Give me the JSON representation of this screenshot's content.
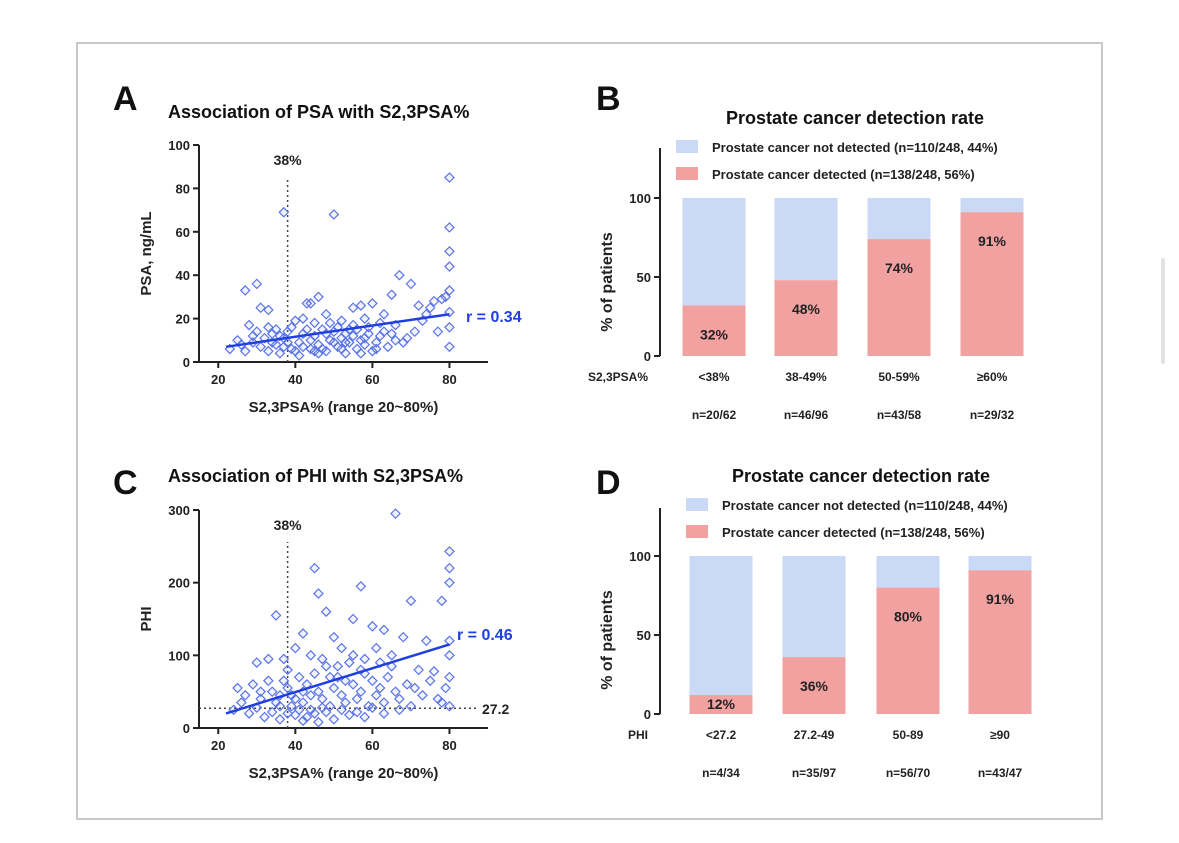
{
  "colors": {
    "scatter": "#5a74e8",
    "fit": "#1f3fe0",
    "r_label": "#1f3fe0",
    "not_detected": "#c9d9f6",
    "detected": "#f2a1a1",
    "axis": "#222222"
  },
  "chart_data": [
    {
      "type": "scatter",
      "panel_letter": "A",
      "title": "Association of PSA with S2,3PSA%",
      "xlabel": "S2,3PSA% (range 20~80%)",
      "ylabel": "PSA, ng/mL",
      "xlim": [
        15,
        90
      ],
      "ylim": [
        0,
        100
      ],
      "xticks": [
        20,
        40,
        60,
        80
      ],
      "yticks": [
        0,
        20,
        40,
        60,
        80,
        100
      ],
      "fit_line": {
        "x": [
          22,
          80
        ],
        "y": [
          7,
          22
        ]
      },
      "annotation": "r = 0.34",
      "vline": {
        "x": 38,
        "label": "38%"
      },
      "points": [
        [
          30,
          36
        ],
        [
          27,
          33
        ],
        [
          31,
          25
        ],
        [
          37,
          69
        ],
        [
          33,
          24
        ],
        [
          43,
          27
        ],
        [
          44,
          27
        ],
        [
          46,
          30
        ],
        [
          50,
          68
        ],
        [
          55,
          25
        ],
        [
          57,
          26
        ],
        [
          60,
          27
        ],
        [
          63,
          22
        ],
        [
          65,
          31
        ],
        [
          67,
          40
        ],
        [
          70,
          36
        ],
        [
          72,
          26
        ],
        [
          75,
          25
        ],
        [
          76,
          28
        ],
        [
          78,
          29
        ],
        [
          79,
          30
        ],
        [
          80,
          85
        ],
        [
          80,
          62
        ],
        [
          80,
          51
        ],
        [
          80,
          44
        ],
        [
          80,
          33
        ],
        [
          80,
          23
        ],
        [
          80,
          16
        ],
        [
          80,
          7
        ],
        [
          28,
          17
        ],
        [
          33,
          16
        ],
        [
          35,
          15
        ],
        [
          38,
          14
        ],
        [
          40,
          19
        ],
        [
          42,
          20
        ],
        [
          45,
          18
        ],
        [
          48,
          22
        ],
        [
          52,
          19
        ],
        [
          55,
          17
        ],
        [
          58,
          20
        ],
        [
          62,
          18
        ],
        [
          66,
          17
        ],
        [
          69,
          11
        ],
        [
          73,
          19
        ],
        [
          77,
          14
        ],
        [
          23,
          6
        ],
        [
          26,
          8
        ],
        [
          29,
          12
        ],
        [
          31,
          7
        ],
        [
          34,
          9
        ],
        [
          36,
          4
        ],
        [
          37,
          11
        ],
        [
          39,
          6
        ],
        [
          41,
          9
        ],
        [
          42,
          13
        ],
        [
          44,
          6
        ],
        [
          45,
          12
        ],
        [
          46,
          8
        ],
        [
          47,
          15
        ],
        [
          48,
          5
        ],
        [
          49,
          10
        ],
        [
          50,
          14
        ],
        [
          51,
          7
        ],
        [
          52,
          11
        ],
        [
          53,
          4
        ],
        [
          54,
          9
        ],
        [
          55,
          12
        ],
        [
          56,
          6
        ],
        [
          57,
          10
        ],
        [
          58,
          8
        ],
        [
          59,
          13
        ],
        [
          60,
          5
        ],
        [
          61,
          9
        ],
        [
          62,
          12
        ],
        [
          64,
          7
        ],
        [
          66,
          10
        ],
        [
          68,
          9
        ],
        [
          71,
          14
        ],
        [
          25,
          10
        ],
        [
          27,
          5
        ],
        [
          30,
          14
        ],
        [
          32,
          11
        ],
        [
          35,
          8
        ],
        [
          38,
          9
        ],
        [
          40,
          5
        ],
        [
          43,
          15
        ],
        [
          46,
          4
        ],
        [
          49,
          18
        ],
        [
          51,
          16
        ],
        [
          53,
          13
        ],
        [
          56,
          15
        ],
        [
          59,
          16
        ],
        [
          61,
          6
        ],
        [
          63,
          14
        ],
        [
          33,
          5
        ],
        [
          36,
          12
        ],
        [
          39,
          16
        ],
        [
          41,
          3
        ],
        [
          44,
          10
        ],
        [
          47,
          6
        ],
        [
          50,
          9
        ],
        [
          52,
          6
        ],
        [
          54,
          15
        ],
        [
          57,
          4
        ],
        [
          29,
          9
        ],
        [
          34,
          13
        ],
        [
          37,
          7
        ],
        [
          42,
          7
        ],
        [
          45,
          5
        ],
        [
          48,
          13
        ],
        [
          53,
          9
        ],
        [
          58,
          11
        ],
        [
          65,
          13
        ],
        [
          74,
          22
        ]
      ]
    },
    {
      "type": "bar",
      "stacked": true,
      "panel_letter": "B",
      "title": "Prostate cancer detection rate",
      "ylabel": "% of patients",
      "xlabel": "S2,3PSA%",
      "ylim": [
        0,
        100
      ],
      "yticks": [
        0,
        50,
        100
      ],
      "legend_position": "top",
      "categories": [
        "<38%",
        "38-49%",
        "50-59%",
        "≥60%"
      ],
      "counts": [
        "n=20/62",
        "n=46/96",
        "n=43/58",
        "n=29/32"
      ],
      "series": [
        {
          "name": "Prostate cancer not detected (n=110/248, 44%)",
          "values": [
            68,
            52,
            26,
            9
          ]
        },
        {
          "name": "Prostate cancer detected (n=138/248, 56%)",
          "values": [
            32,
            48,
            74,
            91
          ]
        }
      ],
      "data_labels": [
        "32%",
        "48%",
        "74%",
        "91%"
      ]
    },
    {
      "type": "scatter",
      "panel_letter": "C",
      "title": "Association of PHI with S2,3PSA%",
      "xlabel": "S2,3PSA% (range 20~80%)",
      "ylabel": "PHI",
      "xlim": [
        15,
        90
      ],
      "ylim": [
        0,
        300
      ],
      "xticks": [
        20,
        40,
        60,
        80
      ],
      "yticks": [
        0,
        100,
        200,
        300
      ],
      "fit_line": {
        "x": [
          22,
          80
        ],
        "y": [
          20,
          115
        ]
      },
      "annotation": "r = 0.46",
      "vline": {
        "x": 38,
        "label": "38%"
      },
      "hline": {
        "y": 27.2,
        "label": "27.2"
      },
      "points": [
        [
          66,
          295
        ],
        [
          80,
          243
        ],
        [
          80,
          220
        ],
        [
          80,
          200
        ],
        [
          78,
          175
        ],
        [
          57,
          195
        ],
        [
          45,
          220
        ],
        [
          70,
          175
        ],
        [
          35,
          155
        ],
        [
          46,
          185
        ],
        [
          48,
          160
        ],
        [
          55,
          150
        ],
        [
          60,
          140
        ],
        [
          63,
          135
        ],
        [
          68,
          125
        ],
        [
          74,
          120
        ],
        [
          80,
          120
        ],
        [
          80,
          100
        ],
        [
          42,
          130
        ],
        [
          50,
          125
        ],
        [
          40,
          110
        ],
        [
          33,
          95
        ],
        [
          30,
          90
        ],
        [
          38,
          80
        ],
        [
          44,
          100
        ],
        [
          52,
          110
        ],
        [
          58,
          95
        ],
        [
          62,
          90
        ],
        [
          65,
          85
        ],
        [
          72,
          80
        ],
        [
          76,
          78
        ],
        [
          80,
          70
        ],
        [
          25,
          55
        ],
        [
          27,
          45
        ],
        [
          29,
          60
        ],
        [
          31,
          40
        ],
        [
          34,
          50
        ],
        [
          36,
          30
        ],
        [
          37,
          65
        ],
        [
          39,
          45
        ],
        [
          41,
          70
        ],
        [
          42,
          35
        ],
        [
          43,
          60
        ],
        [
          44,
          25
        ],
        [
          45,
          75
        ],
        [
          46,
          50
        ],
        [
          47,
          40
        ],
        [
          48,
          85
        ],
        [
          49,
          30
        ],
        [
          50,
          55
        ],
        [
          51,
          70
        ],
        [
          52,
          45
        ],
        [
          53,
          35
        ],
        [
          54,
          90
        ],
        [
          55,
          60
        ],
        [
          56,
          40
        ],
        [
          57,
          50
        ],
        [
          58,
          75
        ],
        [
          59,
          30
        ],
        [
          60,
          65
        ],
        [
          61,
          45
        ],
        [
          62,
          55
        ],
        [
          63,
          35
        ],
        [
          64,
          70
        ],
        [
          66,
          50
        ],
        [
          67,
          40
        ],
        [
          69,
          60
        ],
        [
          71,
          55
        ],
        [
          73,
          45
        ],
        [
          75,
          65
        ],
        [
          77,
          40
        ],
        [
          79,
          55
        ],
        [
          24,
          25
        ],
        [
          26,
          35
        ],
        [
          28,
          20
        ],
        [
          30,
          28
        ],
        [
          32,
          15
        ],
        [
          34,
          22
        ],
        [
          35,
          35
        ],
        [
          36,
          12
        ],
        [
          38,
          20
        ],
        [
          39,
          30
        ],
        [
          40,
          18
        ],
        [
          41,
          25
        ],
        [
          42,
          10
        ],
        [
          43,
          15
        ],
        [
          45,
          20
        ],
        [
          46,
          8
        ],
        [
          47,
          28
        ],
        [
          48,
          22
        ],
        [
          50,
          12
        ],
        [
          52,
          25
        ],
        [
          54,
          18
        ],
        [
          56,
          22
        ],
        [
          58,
          15
        ],
        [
          60,
          28
        ],
        [
          63,
          20
        ],
        [
          67,
          25
        ],
        [
          70,
          30
        ],
        [
          78,
          35
        ],
        [
          80,
          30
        ],
        [
          33,
          65
        ],
        [
          37,
          95
        ],
        [
          40,
          40
        ],
        [
          47,
          95
        ],
        [
          51,
          85
        ],
        [
          55,
          100
        ],
        [
          57,
          80
        ],
        [
          61,
          110
        ],
        [
          65,
          100
        ],
        [
          53,
          65
        ],
        [
          49,
          70
        ],
        [
          44,
          45
        ],
        [
          42,
          50
        ],
        [
          38,
          55
        ],
        [
          36,
          45
        ],
        [
          31,
          50
        ]
      ]
    },
    {
      "type": "bar",
      "stacked": true,
      "panel_letter": "D",
      "title": "Prostate cancer detection rate",
      "ylabel": "% of patients",
      "xlabel": "PHI",
      "ylim": [
        0,
        100
      ],
      "yticks": [
        0,
        50,
        100
      ],
      "legend_position": "top",
      "categories": [
        "<27.2",
        "27.2-49",
        "50-89",
        "≥90"
      ],
      "counts": [
        "n=4/34",
        "n=35/97",
        "n=56/70",
        "n=43/47"
      ],
      "series": [
        {
          "name": "Prostate cancer not detected (n=110/248, 44%)",
          "values": [
            88,
            64,
            20,
            9
          ]
        },
        {
          "name": "Prostate cancer detected (n=138/248, 56%)",
          "values": [
            12,
            36,
            80,
            91
          ]
        }
      ],
      "data_labels": [
        "12%",
        "36%",
        "80%",
        "91%"
      ]
    }
  ]
}
